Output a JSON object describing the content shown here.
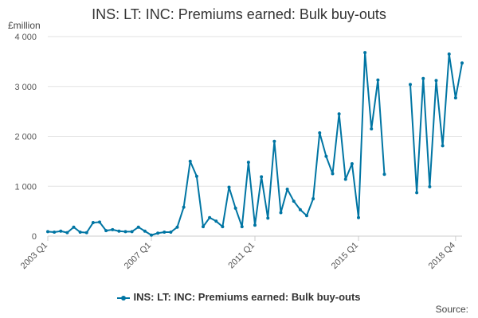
{
  "chart_data": {
    "type": "line",
    "title": "INS: LT: INC: Premiums earned: Bulk buy-outs",
    "unit_label": "£million",
    "legend": [
      {
        "label": "INS: LT: INC: Premiums earned: Bulk buy-outs",
        "color": "#0075a3"
      }
    ],
    "source_label": "Source:",
    "ylim": [
      0,
      4000
    ],
    "y_ticks": [
      {
        "value": 0,
        "label": "0"
      },
      {
        "value": 1000,
        "label": "1 000"
      },
      {
        "value": 2000,
        "label": "2 000"
      },
      {
        "value": 3000,
        "label": "3 000"
      },
      {
        "value": 4000,
        "label": "4 000"
      }
    ],
    "x_ticks": [
      {
        "index": 0,
        "label": "2003 Q1"
      },
      {
        "index": 16,
        "label": "2007 Q1"
      },
      {
        "index": 32,
        "label": "2011 Q1"
      },
      {
        "index": 48,
        "label": "2015 Q1"
      },
      {
        "index": 63,
        "label": "2018 Q4"
      }
    ],
    "grid": "horizontal",
    "series": [
      {
        "name": "INS: LT: INC: Premiums earned: Bulk buy-outs",
        "color": "#0075a3",
        "values": [
          90,
          80,
          100,
          70,
          180,
          80,
          70,
          270,
          280,
          110,
          130,
          100,
          90,
          90,
          180,
          100,
          20,
          60,
          80,
          80,
          180,
          580,
          1500,
          1200,
          190,
          370,
          300,
          190,
          980,
          560,
          190,
          1480,
          220,
          1190,
          360,
          1900,
          470,
          940,
          700,
          530,
          410,
          750,
          2070,
          1600,
          1250,
          2450,
          1140,
          1450,
          370,
          3680,
          2150,
          3130,
          1240,
          null,
          null,
          null,
          3040,
          870,
          3160,
          990,
          3120,
          1810,
          3650,
          2770,
          3470
        ]
      }
    ]
  }
}
